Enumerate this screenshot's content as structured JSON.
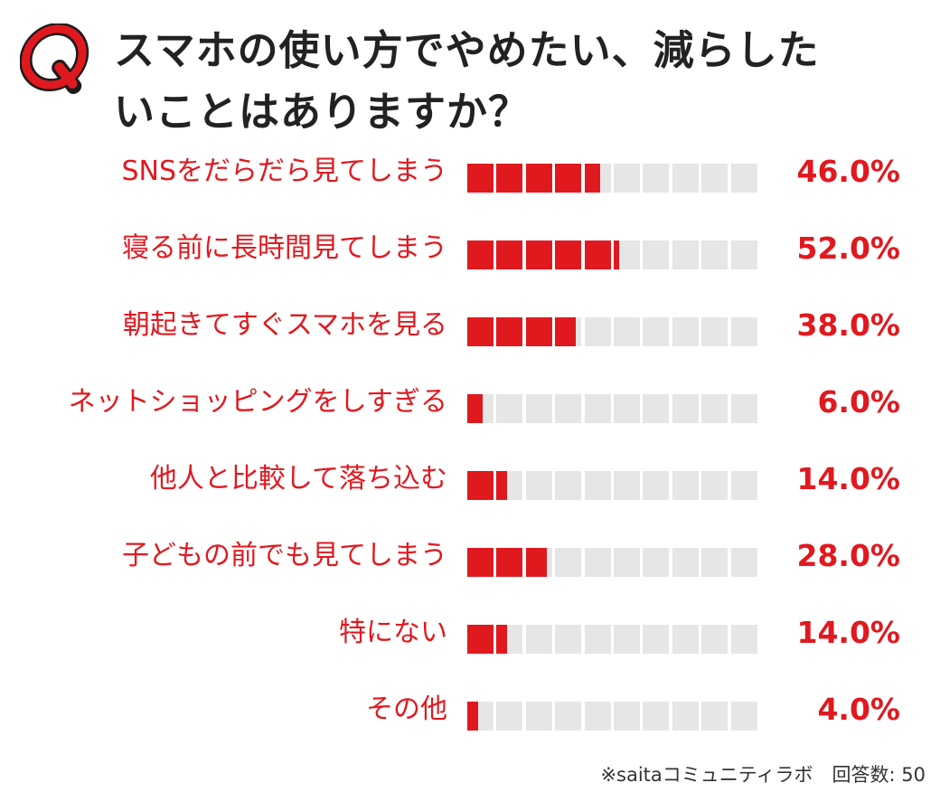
{
  "badge": {
    "letter": "Q"
  },
  "title_lines": [
    "スマホの使い方でやめたい、減らした",
    "いことはありますか？"
  ],
  "chart_data": {
    "type": "bar",
    "orientation": "horizontal",
    "unit": "%",
    "blocks_per_bar": 10,
    "xlim": [
      0,
      100
    ],
    "categories": [
      "SNSをだらだら見てしまう",
      "寝る前に長時間見てしまう",
      "朝起きてすぐスマホを見る",
      "ネットショッピングをしすぎる",
      "他人と比較して落ち込む",
      "子どもの前でも見てしまう",
      "特にない",
      "その他"
    ],
    "values": [
      46.0,
      52.0,
      38.0,
      6.0,
      14.0,
      28.0,
      14.0,
      4.0
    ],
    "value_labels": [
      "46.0%",
      "52.0%",
      "38.0%",
      "6.0%",
      "14.0%",
      "28.0%",
      "14.0%",
      "4.0%"
    ]
  },
  "footnote": "※saitaコミュニティラボ　回答数: 50",
  "colors": {
    "accent": "#e0191f",
    "empty_block": "#e6e6e6",
    "title": "#222222"
  }
}
